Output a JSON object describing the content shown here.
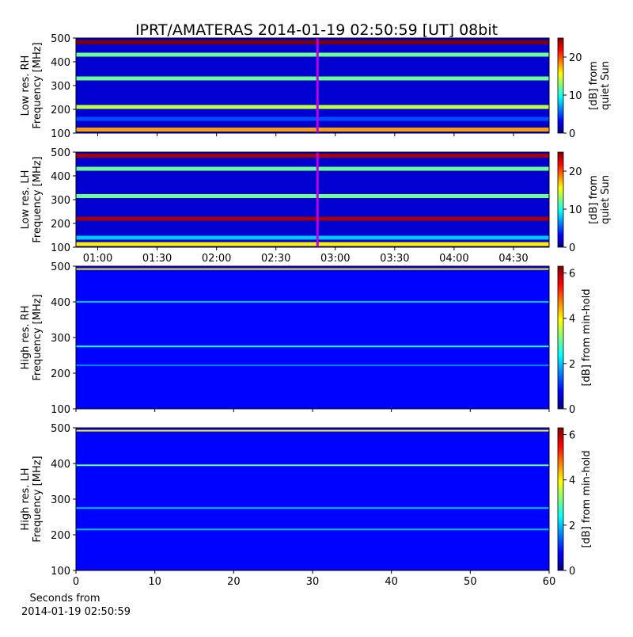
{
  "title": "IPRT/AMATERAS 2014-01-19 02:50:59 [UT]   08bit",
  "chart_data": [
    {
      "type": "spectrogram",
      "ylabel": [
        "Low res. RH",
        "Frequency [MHz]"
      ],
      "colorbar_label": [
        "[dB] from",
        "quiet Sun"
      ],
      "xlim": [
        "00:49",
        "04:48"
      ],
      "xticks": [
        "01:00",
        "01:30",
        "02:00",
        "02:30",
        "03:00",
        "03:30",
        "04:00",
        "04:30"
      ],
      "xticklabels": false,
      "ylim": [
        100,
        500
      ],
      "yticks": [
        100,
        200,
        300,
        400,
        500
      ],
      "clim": [
        0,
        25
      ],
      "cticks": [
        0,
        10,
        20
      ],
      "background_db": 2,
      "cursor": "02:51",
      "bands": [
        {
          "freq": 482,
          "db": 25
        },
        {
          "freq": 430,
          "db": 12
        },
        {
          "freq": 330,
          "db": 12
        },
        {
          "freq": 210,
          "db": 14
        },
        {
          "freq": 160,
          "db": 5
        },
        {
          "freq": 115,
          "db": 18
        }
      ]
    },
    {
      "type": "spectrogram",
      "ylabel": [
        "Low res. LH",
        "Frequency [MHz]"
      ],
      "colorbar_label": [
        "[dB] from",
        "quiet Sun"
      ],
      "xlim": [
        "00:49",
        "04:48"
      ],
      "xticks": [
        "01:00",
        "01:30",
        "02:00",
        "02:30",
        "03:00",
        "03:30",
        "04:00",
        "04:30"
      ],
      "xticklabels": true,
      "ylim": [
        100,
        500
      ],
      "yticks": [
        100,
        200,
        300,
        400,
        500
      ],
      "clim": [
        0,
        25
      ],
      "cticks": [
        0,
        10,
        20
      ],
      "background_db": 2,
      "cursor": "02:51",
      "bands": [
        {
          "freq": 485,
          "db": 24
        },
        {
          "freq": 430,
          "db": 12
        },
        {
          "freq": 315,
          "db": 12
        },
        {
          "freq": 220,
          "db": 24
        },
        {
          "freq": 140,
          "db": 8
        },
        {
          "freq": 113,
          "db": 16
        }
      ]
    },
    {
      "type": "spectrogram",
      "ylabel": [
        "High res. RH",
        "Frequency [MHz]"
      ],
      "colorbar_label": [
        "[dB] from min-hold"
      ],
      "xlim": [
        0,
        60
      ],
      "xticks": [
        0,
        10,
        20,
        30,
        40,
        50,
        60
      ],
      "xticklabels": false,
      "ylim": [
        100,
        500
      ],
      "yticks": [
        100,
        200,
        300,
        400,
        500
      ],
      "clim": [
        0,
        6.3
      ],
      "cticks": [
        0,
        2,
        4,
        6
      ],
      "background_db": 0.8,
      "bands": [
        {
          "freq": 492,
          "db": 4
        },
        {
          "freq": 400,
          "db": 2
        },
        {
          "freq": 275,
          "db": 2.5
        },
        {
          "freq": 222,
          "db": 1.6
        }
      ]
    },
    {
      "type": "spectrogram",
      "ylabel": [
        "High res. LH",
        "Frequency [MHz]"
      ],
      "colorbar_label": [
        "[dB] from min-hold"
      ],
      "xlim": [
        0,
        60
      ],
      "xticks": [
        0,
        10,
        20,
        30,
        40,
        50,
        60
      ],
      "xticklabels": true,
      "xlabel": [
        "Seconds from",
        "2014-01-19 02:50:59"
      ],
      "ylim": [
        100,
        500
      ],
      "yticks": [
        100,
        200,
        300,
        400,
        500
      ],
      "clim": [
        0,
        6.3
      ],
      "cticks": [
        0,
        2,
        4,
        6
      ],
      "background_db": 0.8,
      "bands": [
        {
          "freq": 492,
          "db": 4
        },
        {
          "freq": 395,
          "db": 3
        },
        {
          "freq": 275,
          "db": 2
        },
        {
          "freq": 215,
          "db": 2
        }
      ]
    }
  ]
}
